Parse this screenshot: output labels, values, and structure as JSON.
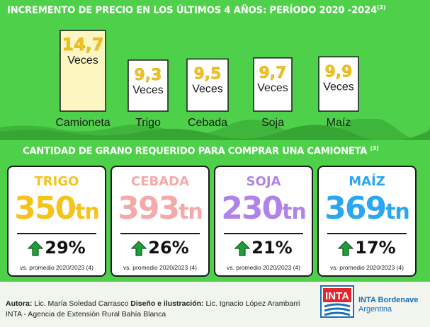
{
  "title": {
    "main": "INCREMENTO DE PRECIO EN LOS ÚLTIMOS 4 AÑOS:  PERÍODO 2020 -2024",
    "ref": "(2)"
  },
  "section2": {
    "main": "CANTIDAD DE GRANO REQUERIDO PARA COMPRAR UNA CAMIONETA",
    "ref": "(3)"
  },
  "chart_data": [
    {
      "type": "bar",
      "title": "INCREMENTO DE PRECIO EN LOS ÚLTIMOS 4 AÑOS:  PERÍODO 2020 -2024",
      "categories": [
        "Camioneta",
        "Trigo",
        "Cebada",
        "Soja",
        "Maíz"
      ],
      "values": [
        14.7,
        9.3,
        9.5,
        9.7,
        9.9
      ],
      "value_labels": [
        "14,7",
        "9,3",
        "9,5",
        "9,7",
        "9,9"
      ],
      "unit_label": "Veces",
      "ylim": [
        0,
        16
      ],
      "grid": false,
      "colors": {
        "highlight": "#fdf6c3",
        "normal": "#ffffff",
        "label": "#f3c11c"
      }
    },
    {
      "type": "table",
      "title": "CANTIDAD DE GRANO REQUERIDO PARA COMPRAR UNA CAMIONETA",
      "rows": [
        {
          "name": "TRIGO",
          "tonnes": 350,
          "unit": "tn",
          "change": "29%",
          "color": "#f5c41c"
        },
        {
          "name": "CEBADA",
          "tonnes": 393,
          "unit": "tn",
          "change": "26%",
          "color": "#f4aaa8"
        },
        {
          "name": "SOJA",
          "tonnes": 230,
          "unit": "tn",
          "change": "21%",
          "color": "#b083ea"
        },
        {
          "name": "MAÍZ",
          "tonnes": 369,
          "unit": "tn",
          "change": "17%",
          "color": "#2aa7f2"
        }
      ],
      "note": "vs. promedio 2020/2023 (4)"
    }
  ],
  "footer": {
    "author_label": "Autora:",
    "author": " Lic. María Soledad Carrasco ",
    "design_label": "Diseño e ilustración:",
    "designer": " Lic. Ignacio López Arambarri",
    "agency": "INTA - Agencia de Extensión Rural Bahía Blanca",
    "logo_text": "INTA",
    "org_name": "INTA Bordenave",
    "org_country": "Argentina"
  },
  "colors": {
    "green": "#4fd04a",
    "arrow": "#1f9e3a",
    "logo_blue": "#1a6fb8"
  }
}
